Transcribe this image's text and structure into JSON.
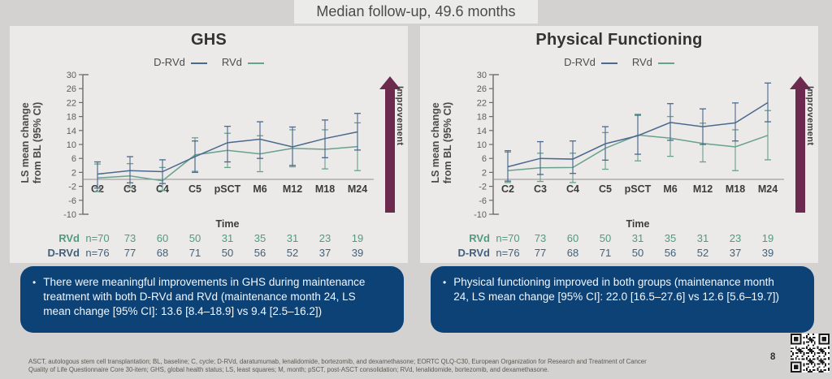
{
  "header": {
    "text": "Median follow-up, 49.6 months"
  },
  "improvement_label": "Improvement",
  "page_number": "8",
  "footnote": {
    "line1": "ASCT, autologous stem cell transplantation; BL, baseline; C, cycle; D-RVd, daratumumab, lenalidomide, bortezomib, and dexamethasone; EORTC QLQ-C30, European Organization for Research and Treatment of Cancer",
    "line2": "Quality of Life Questionnaire Core 30-item; GHS, global health status; LS, least squares; M, month; pSCT, post-ASCT consolidation; RVd, lenalidomide, bortezomib, and dexamethasone."
  },
  "callouts": [
    {
      "text": "There were meaningful improvements in GHS during maintenance treatment with both D-RVd and RVd (maintenance month 24, LS mean change [95% CI]: 13.6 [8.4–18.9] vs 9.4 [2.5–16.2])"
    },
    {
      "text": "Physical functioning improved in both groups (maintenance month 24, LS mean change [95% CI]: 22.0 [16.5–27.6] vs 12.6 [5.6–19.7])"
    }
  ],
  "colors": {
    "drvd_line": "#4b688f",
    "rvd_line": "#68a28c",
    "arrow": "#6d2a4f",
    "callout_bg": "#0d4277",
    "panel_bg": "#ebeae8",
    "at_risk_rvd": "#4f9b80",
    "at_risk_drvd": "#41607c"
  },
  "chart_data": [
    {
      "type": "line",
      "title": "GHS",
      "xlabel": "Time",
      "ylabel": "LS mean change from BL (95% CI)",
      "ylim": [
        -10,
        30
      ],
      "yticks": [
        30,
        26,
        22,
        18,
        14,
        10,
        6,
        2,
        -2,
        -6,
        -10
      ],
      "categories": [
        "C2",
        "C3",
        "C4",
        "C5",
        "pSCT",
        "M6",
        "M12",
        "M18",
        "M24"
      ],
      "series": [
        {
          "name": "D-RVd",
          "color": "#4b688f",
          "values": [
            1.5,
            2.5,
            2.2,
            6.5,
            10.5,
            11.5,
            9.3,
            11.7,
            13.6
          ],
          "ci_low": [
            -2.5,
            -1.0,
            -1.2,
            2.0,
            5.0,
            6.0,
            4.0,
            6.2,
            8.4
          ],
          "ci_high": [
            5.0,
            6.5,
            5.6,
            11.0,
            15.2,
            16.5,
            15.0,
            17.0,
            18.9
          ]
        },
        {
          "name": "RVd",
          "color": "#68a28c",
          "values": [
            0.4,
            1.0,
            -0.4,
            7.0,
            8.3,
            7.3,
            8.9,
            8.6,
            9.4
          ],
          "ci_low": [
            -3.5,
            -2.4,
            -3.2,
            2.3,
            3.4,
            2.2,
            3.6,
            3.0,
            2.5
          ],
          "ci_high": [
            4.4,
            4.5,
            3.4,
            11.9,
            13.2,
            12.5,
            14.2,
            14.2,
            16.2
          ]
        }
      ],
      "at_risk": [
        {
          "label": "RVd",
          "color": "#4f9b80",
          "values": [
            "n=70",
            "73",
            "60",
            "50",
            "31",
            "35",
            "31",
            "23",
            "19"
          ]
        },
        {
          "label": "D-RVd",
          "color": "#41607c",
          "values": [
            "n=76",
            "77",
            "68",
            "71",
            "50",
            "56",
            "52",
            "37",
            "39"
          ]
        }
      ]
    },
    {
      "type": "line",
      "title": "Physical Functioning",
      "xlabel": "Time",
      "ylabel": "LS mean change from BL (95% CI)",
      "ylim": [
        -10,
        30
      ],
      "yticks": [
        30,
        26,
        22,
        18,
        14,
        10,
        6,
        2,
        -2,
        -6,
        -10
      ],
      "categories": [
        "C2",
        "C3",
        "C4",
        "C5",
        "pSCT",
        "M6",
        "M12",
        "M18",
        "M24"
      ],
      "series": [
        {
          "name": "D-RVd",
          "color": "#4b688f",
          "values": [
            3.6,
            6.0,
            5.8,
            10.2,
            12.5,
            16.3,
            15.1,
            16.2,
            22.0
          ],
          "ci_low": [
            -0.5,
            1.4,
            1.7,
            5.5,
            7.2,
            11.2,
            10.0,
            11.0,
            16.5
          ],
          "ci_high": [
            8.2,
            10.8,
            11.0,
            15.1,
            18.6,
            21.7,
            20.2,
            21.9,
            27.6
          ]
        },
        {
          "name": "RVd",
          "color": "#68a28c",
          "values": [
            2.5,
            3.3,
            3.4,
            8.9,
            12.7,
            11.8,
            10.3,
            9.3,
            12.6
          ],
          "ci_low": [
            -0.9,
            -0.6,
            -0.9,
            2.9,
            5.3,
            6.6,
            5.0,
            2.5,
            5.6
          ],
          "ci_high": [
            7.8,
            7.5,
            7.5,
            13.4,
            18.3,
            18.0,
            16.1,
            14.2,
            19.7
          ]
        }
      ],
      "at_risk": [
        {
          "label": "RVd",
          "color": "#4f9b80",
          "values": [
            "n=70",
            "73",
            "60",
            "50",
            "31",
            "35",
            "31",
            "23",
            "19"
          ]
        },
        {
          "label": "D-RVd",
          "color": "#41607c",
          "values": [
            "n=76",
            "77",
            "68",
            "71",
            "50",
            "56",
            "52",
            "37",
            "39"
          ]
        }
      ]
    }
  ]
}
